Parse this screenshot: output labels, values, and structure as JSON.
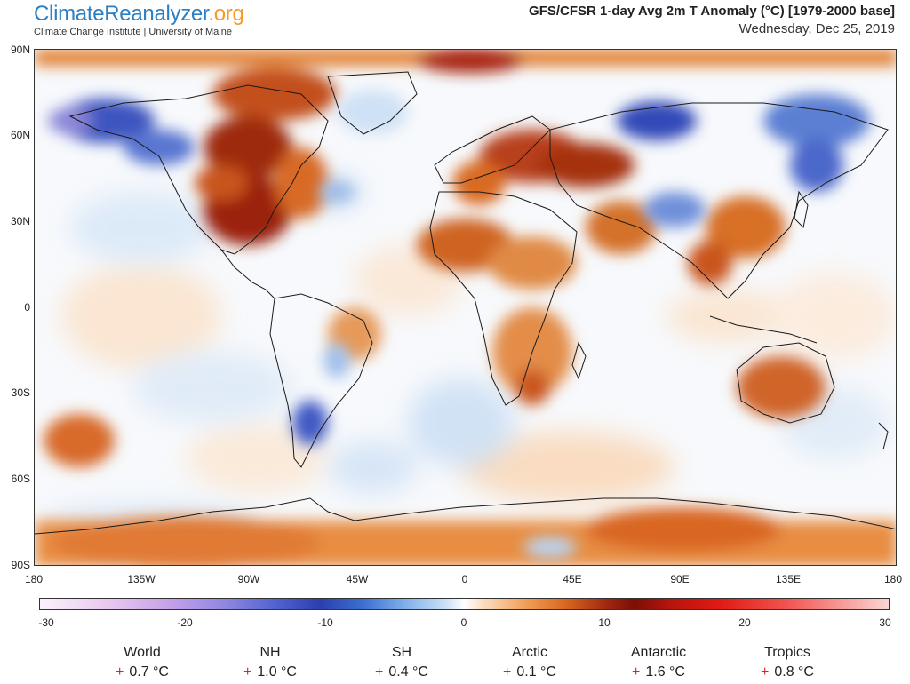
{
  "header": {
    "logo_part1": "Climate",
    "logo_part2": "Reanalyzer",
    "logo_part3": ".org",
    "institution": "Climate Change Institute | University of Maine",
    "title": "GFS/CFSR 1-day Avg 2m T Anomaly (°C) [1979-2000 base]",
    "date": "Wednesday, Dec 25, 2019"
  },
  "map": {
    "lat_labels": [
      "90N",
      "60N",
      "30N",
      "0",
      "30S",
      "60S",
      "90S"
    ],
    "lon_labels": [
      "180",
      "135W",
      "90W",
      "45W",
      "0",
      "45E",
      "90E",
      "135E",
      "180"
    ],
    "colors": {
      "warm_strong": "#8b1a0a",
      "warm_mid": "#d4641b",
      "warm_light": "#f4b27a",
      "cool_light": "#cfe3f6",
      "cool_mid": "#7fa8e0",
      "cool_strong": "#3e57c4",
      "land_border": "#1a1a1a"
    }
  },
  "colorbar": {
    "labels": [
      "-30",
      "-20",
      "-10",
      "0",
      "10",
      "20",
      "30"
    ],
    "min": -30,
    "max": 30
  },
  "stats": [
    {
      "name": "World",
      "sign": "+",
      "value": "0.7 °C"
    },
    {
      "name": "NH",
      "sign": "+",
      "value": "1.0 °C"
    },
    {
      "name": "SH",
      "sign": "+",
      "value": "0.4 °C"
    },
    {
      "name": "Arctic",
      "sign": "+",
      "value": "0.1 °C"
    },
    {
      "name": "Antarctic",
      "sign": "+",
      "value": "1.6 °C"
    },
    {
      "name": "Tropics",
      "sign": "+",
      "value": "0.8 °C"
    }
  ]
}
